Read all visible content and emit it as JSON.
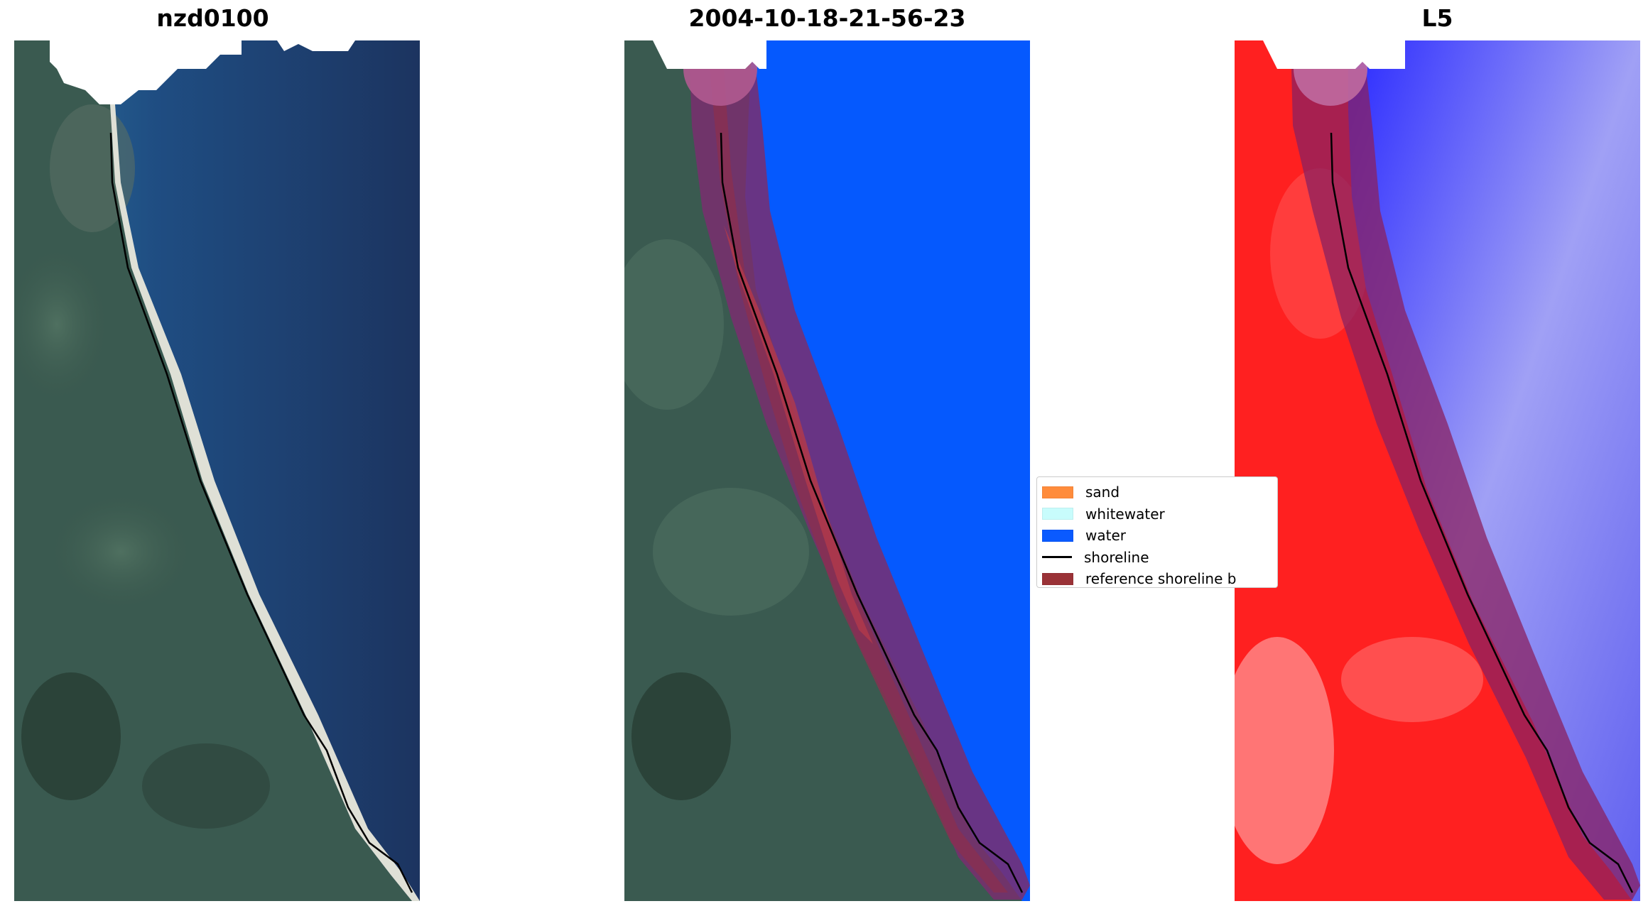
{
  "titles": {
    "left": "nzd0100",
    "middle": "2004-10-18-21-56-23",
    "right": "L5"
  },
  "legend": {
    "items": [
      {
        "label": "sand",
        "color": "#ff8c3c",
        "kind": "patch"
      },
      {
        "label": "whitewater",
        "color": "#c8fcfc",
        "kind": "patch"
      },
      {
        "label": "water",
        "color": "#0a5aff",
        "kind": "patch"
      },
      {
        "label": "shoreline",
        "color": "#000000",
        "kind": "line"
      },
      {
        "label": "reference shoreline b",
        "color": "#9a3237",
        "kind": "patch"
      }
    ]
  },
  "colors": {
    "water_class": "#0559fe",
    "reference_buffer": "#9a3237",
    "ocean": "#1d3a66",
    "land_dark": "#2f4a44",
    "shoreline": "#000000",
    "index_positive": "#ff2020",
    "index_negative": "#3c3cff"
  }
}
